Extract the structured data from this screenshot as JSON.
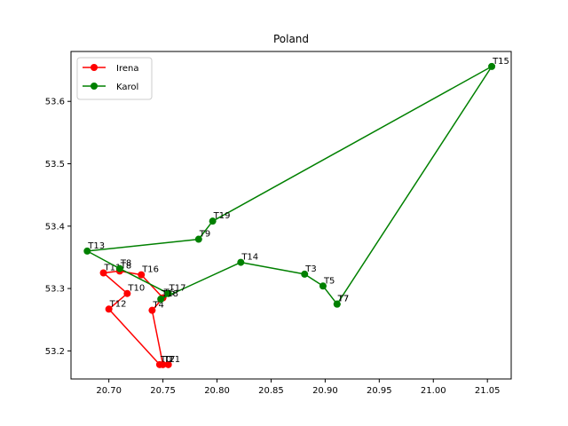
{
  "chart_data": {
    "type": "line",
    "title": "Poland",
    "xlabel": "",
    "ylabel": "",
    "xlim": [
      20.665,
      21.072
    ],
    "ylim": [
      53.155,
      53.68
    ],
    "xticks": [
      20.7,
      20.75,
      20.8,
      20.85,
      20.9,
      20.95,
      21.0,
      21.05
    ],
    "xtick_labels": [
      "20.70",
      "20.75",
      "20.80",
      "20.85",
      "20.90",
      "20.95",
      "21.00",
      "21.05"
    ],
    "yticks": [
      53.2,
      53.3,
      53.4,
      53.5,
      53.6
    ],
    "ytick_labels": [
      "53.2",
      "53.3",
      "53.4",
      "53.5",
      "53.6"
    ],
    "grid": false,
    "legend_position": "top-left",
    "series": [
      {
        "name": "Irena",
        "color": "#ff0000",
        "points": [
          {
            "label": "T1",
            "x": 20.755,
            "y": 53.178
          },
          {
            "label": "T2",
            "x": 20.75,
            "y": 53.178
          },
          {
            "label": "T4",
            "x": 20.74,
            "y": 53.265
          },
          {
            "label": "T6",
            "x": 20.75,
            "y": 53.285
          },
          {
            "label": "T16",
            "x": 20.73,
            "y": 53.322
          },
          {
            "label": "T8",
            "x": 20.71,
            "y": 53.328
          },
          {
            "label": "T11",
            "x": 20.695,
            "y": 53.325
          },
          {
            "label": "T10",
            "x": 20.717,
            "y": 53.292
          },
          {
            "label": "T12",
            "x": 20.7,
            "y": 53.267
          },
          {
            "label": "T0",
            "x": 20.747,
            "y": 53.178
          }
        ]
      },
      {
        "name": "Karol",
        "color": "#008000",
        "points": [
          {
            "label": "T7",
            "x": 20.911,
            "y": 53.275
          },
          {
            "label": "T5",
            "x": 20.898,
            "y": 53.304
          },
          {
            "label": "T3",
            "x": 20.881,
            "y": 53.323
          },
          {
            "label": "T14",
            "x": 20.822,
            "y": 53.342
          },
          {
            "label": "T18",
            "x": 20.748,
            "y": 53.283
          },
          {
            "label": "T17",
            "x": 20.755,
            "y": 53.292
          },
          {
            "label": "T8",
            "x": 20.71,
            "y": 53.332
          },
          {
            "label": "T13",
            "x": 20.68,
            "y": 53.36
          },
          {
            "label": "T9",
            "x": 20.783,
            "y": 53.379
          },
          {
            "label": "T19",
            "x": 20.796,
            "y": 53.408
          },
          {
            "label": "T15",
            "x": 21.054,
            "y": 53.656
          },
          {
            "label": "T7",
            "x": 20.911,
            "y": 53.275
          }
        ]
      }
    ]
  }
}
